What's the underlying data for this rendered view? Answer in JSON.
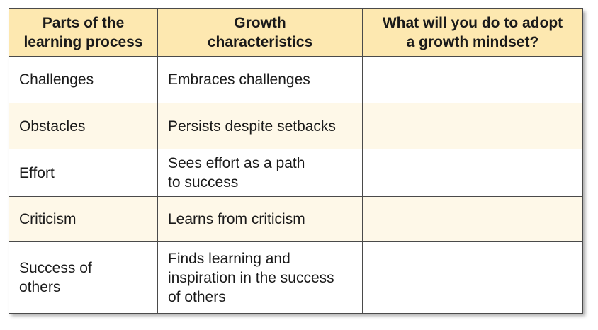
{
  "colors": {
    "header_bg": "#fde8b0",
    "alt_row_bg": "#fef8e8",
    "border": "#4a4a4a"
  },
  "table": {
    "headers": [
      "Parts of the\nlearning process",
      "Growth\ncharacteristics",
      "What will you do to adopt\na growth mindset?"
    ],
    "rows": [
      [
        "Challenges",
        "Embraces challenges",
        ""
      ],
      [
        "Obstacles",
        "Persists despite setbacks",
        ""
      ],
      [
        "Effort",
        "Sees effort as a path\nto success",
        ""
      ],
      [
        "Criticism",
        "Learns from criticism",
        ""
      ],
      [
        "Success of\nothers",
        "Finds learning and\ninspiration in the success\nof others",
        ""
      ]
    ]
  }
}
